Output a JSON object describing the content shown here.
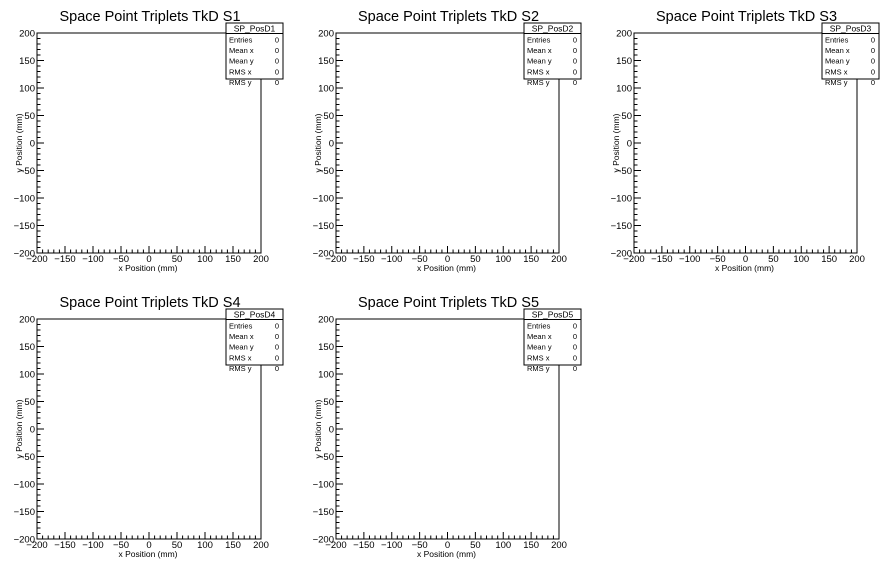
{
  "chart_data": [
    {
      "type": "scatter",
      "title": "Space Point Triplets TkD S1",
      "xlabel": "x Position (mm)",
      "ylabel": "y Position (mm)",
      "xlim": [
        -200,
        200
      ],
      "ylim": [
        -200,
        200
      ],
      "x": [],
      "y": [],
      "stats": {
        "name": "SP_PosD1",
        "rows": [
          {
            "label": "Entries",
            "value": "0"
          },
          {
            "label": "Mean x",
            "value": "0"
          },
          {
            "label": "Mean y",
            "value": "0"
          },
          {
            "label": "RMS x",
            "value": "0"
          },
          {
            "label": "RMS y",
            "value": "0"
          }
        ]
      }
    },
    {
      "type": "scatter",
      "title": "Space Point Triplets TkD S2",
      "xlabel": "x Position (mm)",
      "ylabel": "y Position (mm)",
      "xlim": [
        -200,
        200
      ],
      "ylim": [
        -200,
        200
      ],
      "x": [],
      "y": [],
      "stats": {
        "name": "SP_PosD2",
        "rows": [
          {
            "label": "Entries",
            "value": "0"
          },
          {
            "label": "Mean x",
            "value": "0"
          },
          {
            "label": "Mean y",
            "value": "0"
          },
          {
            "label": "RMS x",
            "value": "0"
          },
          {
            "label": "RMS y",
            "value": "0"
          }
        ]
      }
    },
    {
      "type": "scatter",
      "title": "Space Point Triplets TkD S3",
      "xlabel": "x Position (mm)",
      "ylabel": "y Position (mm)",
      "xlim": [
        -200,
        200
      ],
      "ylim": [
        -200,
        200
      ],
      "x": [],
      "y": [],
      "stats": {
        "name": "SP_PosD3",
        "rows": [
          {
            "label": "Entries",
            "value": "0"
          },
          {
            "label": "Mean x",
            "value": "0"
          },
          {
            "label": "Mean y",
            "value": "0"
          },
          {
            "label": "RMS x",
            "value": "0"
          },
          {
            "label": "RMS y",
            "value": "0"
          }
        ]
      }
    },
    {
      "type": "scatter",
      "title": "Space Point Triplets TkD S4",
      "xlabel": "x Position (mm)",
      "ylabel": "y Position (mm)",
      "xlim": [
        -200,
        200
      ],
      "ylim": [
        -200,
        200
      ],
      "x": [],
      "y": [],
      "stats": {
        "name": "SP_PosD4",
        "rows": [
          {
            "label": "Entries",
            "value": "0"
          },
          {
            "label": "Mean x",
            "value": "0"
          },
          {
            "label": "Mean y",
            "value": "0"
          },
          {
            "label": "RMS x",
            "value": "0"
          },
          {
            "label": "RMS y",
            "value": "0"
          }
        ]
      }
    },
    {
      "type": "scatter",
      "title": "Space Point Triplets TkD S5",
      "xlabel": "x Position (mm)",
      "ylabel": "y Position (mm)",
      "xlim": [
        -200,
        200
      ],
      "ylim": [
        -200,
        200
      ],
      "x": [],
      "y": [],
      "stats": {
        "name": "SP_PosD5",
        "rows": [
          {
            "label": "Entries",
            "value": "0"
          },
          {
            "label": "Mean x",
            "value": "0"
          },
          {
            "label": "Mean y",
            "value": "0"
          },
          {
            "label": "RMS x",
            "value": "0"
          },
          {
            "label": "RMS y",
            "value": "0"
          }
        ]
      }
    }
  ]
}
